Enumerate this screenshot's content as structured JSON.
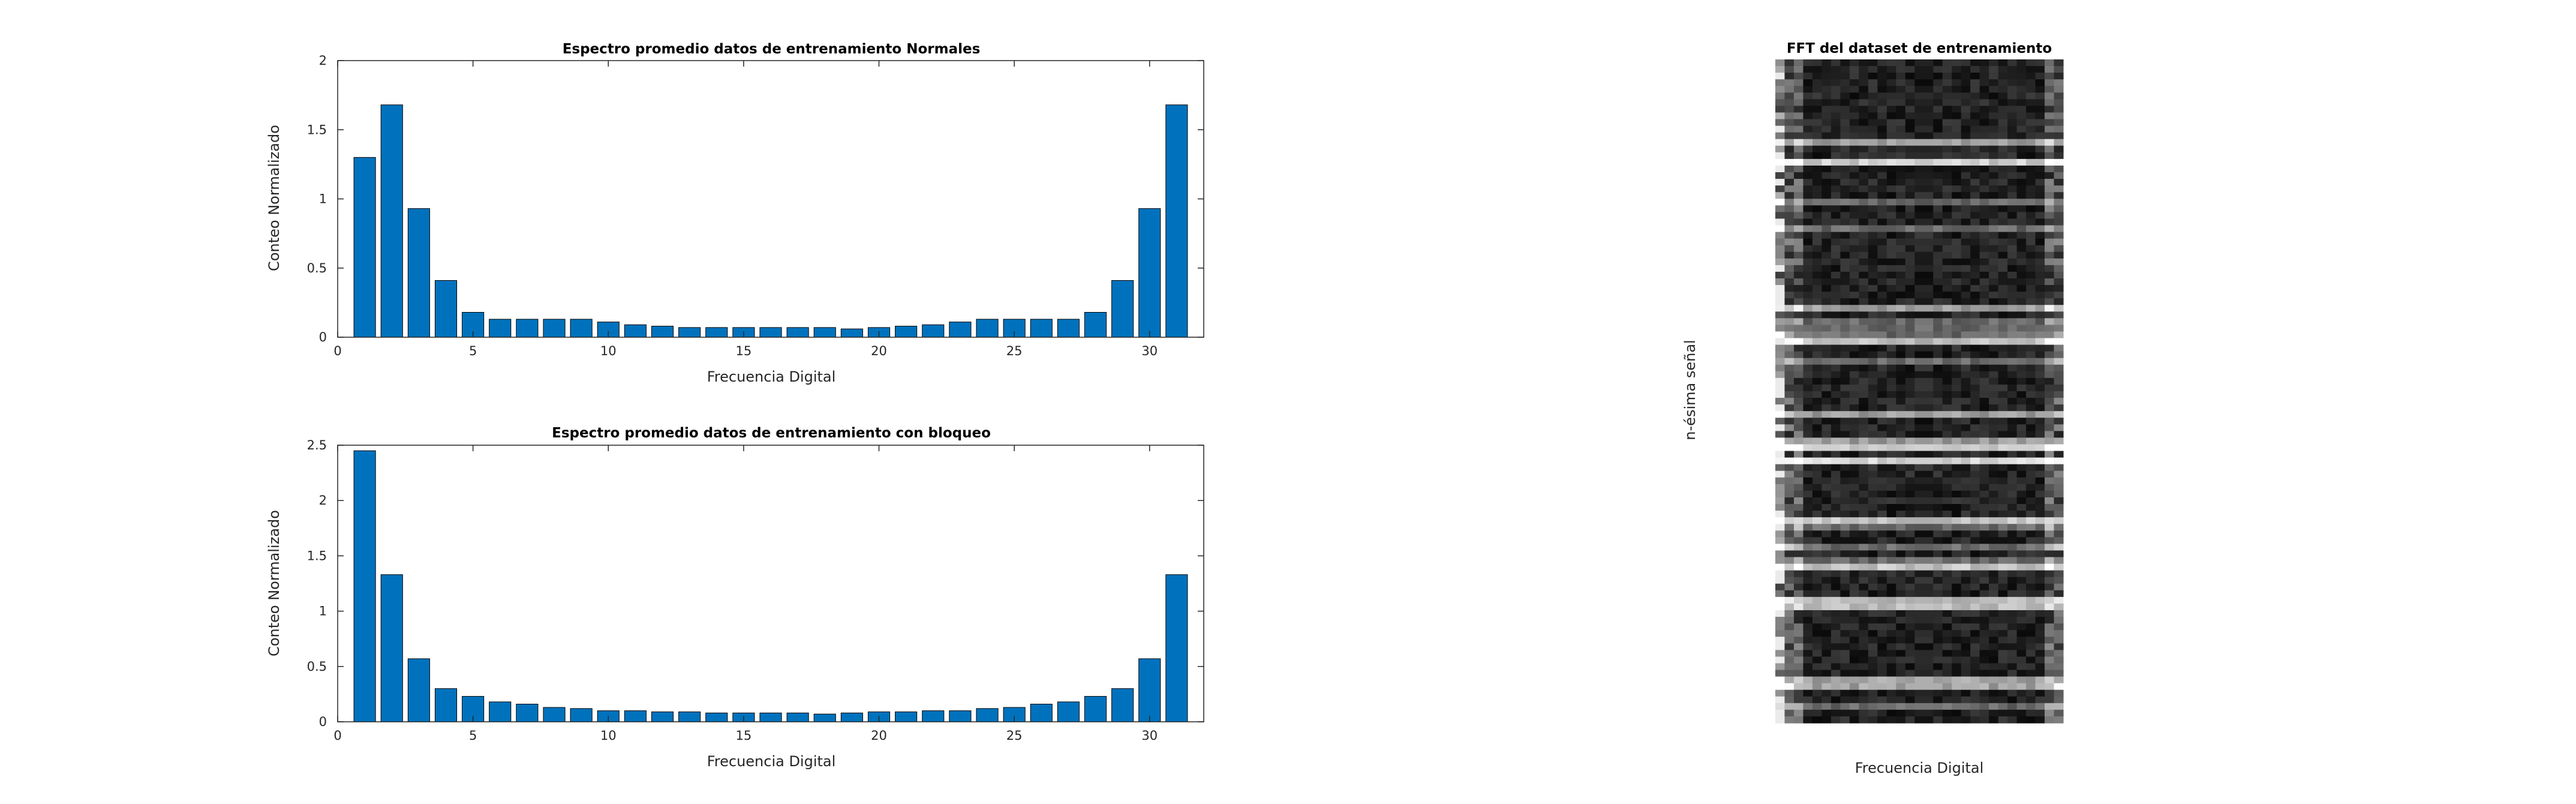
{
  "chart_data": [
    {
      "type": "bar",
      "title": "Espectro promedio datos de entrenamiento Normales",
      "xlabel": "Frecuencia Digital",
      "ylabel": "Conteo Normalizado",
      "xlim": [
        0,
        32
      ],
      "ylim": [
        0,
        2
      ],
      "xticks": [
        "0",
        "5",
        "10",
        "15",
        "20",
        "25",
        "30"
      ],
      "yticks": [
        "0",
        "0.5",
        "1",
        "1.5",
        "2"
      ],
      "x": [
        1,
        2,
        3,
        4,
        5,
        6,
        7,
        8,
        9,
        10,
        11,
        12,
        13,
        14,
        15,
        16,
        17,
        18,
        19,
        20,
        21,
        22,
        23,
        24,
        25,
        26,
        27,
        28,
        29,
        30,
        31
      ],
      "values": [
        1.3,
        1.68,
        0.93,
        0.41,
        0.18,
        0.13,
        0.13,
        0.13,
        0.13,
        0.11,
        0.09,
        0.08,
        0.07,
        0.07,
        0.07,
        0.07,
        0.07,
        0.07,
        0.06,
        0.07,
        0.08,
        0.09,
        0.11,
        0.13,
        0.13,
        0.13,
        0.13,
        0.18,
        0.41,
        0.93,
        1.68
      ],
      "bar_color": "#0072BD",
      "grid": false,
      "legend": "none"
    },
    {
      "type": "bar",
      "title": "Espectro promedio datos de entrenamiento con bloqueo",
      "xlabel": "Frecuencia Digital",
      "ylabel": "Conteo Normalizado",
      "xlim": [
        0,
        32
      ],
      "ylim": [
        0,
        2.5
      ],
      "xticks": [
        "0",
        "5",
        "10",
        "15",
        "20",
        "25",
        "30"
      ],
      "yticks": [
        "0",
        "0.5",
        "1",
        "1.5",
        "2",
        "2.5"
      ],
      "x": [
        1,
        2,
        3,
        4,
        5,
        6,
        7,
        8,
        9,
        10,
        11,
        12,
        13,
        14,
        15,
        16,
        17,
        18,
        19,
        20,
        21,
        22,
        23,
        24,
        25,
        26,
        27,
        28,
        29,
        30,
        31
      ],
      "values": [
        2.45,
        1.33,
        0.57,
        0.3,
        0.23,
        0.18,
        0.16,
        0.13,
        0.12,
        0.1,
        0.1,
        0.09,
        0.09,
        0.08,
        0.08,
        0.08,
        0.08,
        0.07,
        0.08,
        0.09,
        0.09,
        0.1,
        0.1,
        0.12,
        0.13,
        0.16,
        0.18,
        0.23,
        0.3,
        0.57,
        1.33
      ],
      "bar_color": "#0072BD",
      "grid": false,
      "legend": "none"
    },
    {
      "type": "heatmap",
      "title": "FFT del dataset de entrenamiento",
      "xlabel": "Frecuencia Digital",
      "ylabel": "n-ésima señal",
      "colormap": "gray",
      "columns": 31,
      "rows": 100,
      "axes_visible": false
    }
  ]
}
